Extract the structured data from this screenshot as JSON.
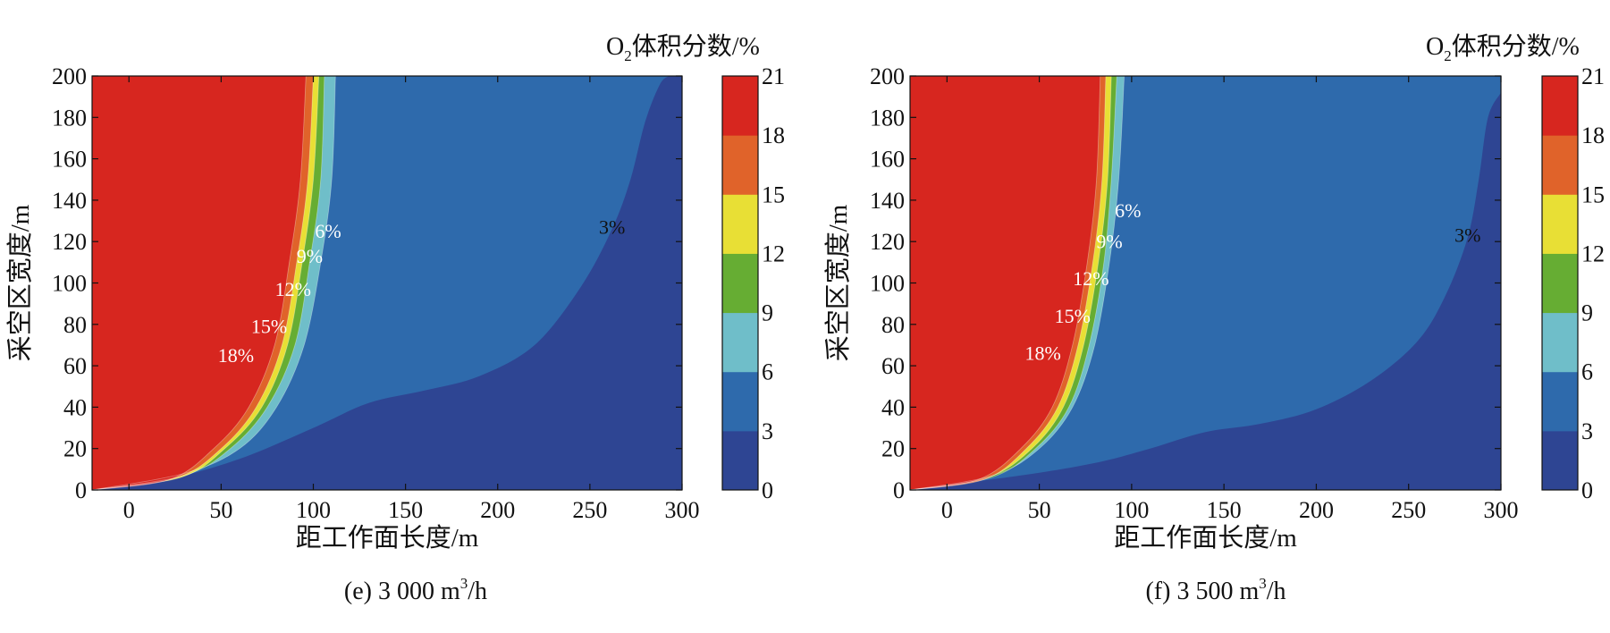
{
  "chart_data": [
    {
      "type": "contour",
      "caption": "(e) 3 000 m³/h",
      "caption_prefix": "(e) 3 000 m",
      "caption_sup": "3",
      "caption_suffix": "/h",
      "xlabel": "距工作面长度/m",
      "ylabel": "采空区宽度/m",
      "xlim": [
        -20,
        300
      ],
      "ylim": [
        0,
        200
      ],
      "xticks": [
        0,
        50,
        100,
        150,
        200,
        250,
        300
      ],
      "yticks": [
        0,
        20,
        40,
        60,
        80,
        100,
        120,
        140,
        160,
        180,
        200
      ],
      "colorbar_title_prefix": "O",
      "colorbar_title_sub": "2",
      "colorbar_title_suffix": "体积分数/%",
      "colorbar_ticks": [
        0,
        3,
        6,
        9,
        12,
        15,
        18,
        21
      ],
      "levels": [
        0,
        3,
        6,
        9,
        12,
        15,
        18,
        21
      ],
      "level_colors": [
        "#2e4593",
        "#2e6aac",
        "#6fbec9",
        "#66ad33",
        "#e8df35",
        "#e0632a",
        "#d7261f"
      ],
      "contour_labels": [
        {
          "text": "18%",
          "x": 58,
          "y": 64,
          "color": "#ffffff"
        },
        {
          "text": "15%",
          "x": 76,
          "y": 78,
          "color": "#ffffff"
        },
        {
          "text": "12%",
          "x": 89,
          "y": 96,
          "color": "#ffffff"
        },
        {
          "text": "9%",
          "x": 98,
          "y": 112,
          "color": "#ffffff"
        },
        {
          "text": "6%",
          "x": 108,
          "y": 124,
          "color": "#ffffff"
        },
        {
          "text": "3%",
          "x": 262,
          "y": 126,
          "color": "#111111"
        }
      ],
      "boundary_3pct": [
        [
          -20,
          0
        ],
        [
          20,
          5
        ],
        [
          60,
          15
        ],
        [
          100,
          30
        ],
        [
          130,
          42
        ],
        [
          160,
          48
        ],
        [
          190,
          55
        ],
        [
          220,
          70
        ],
        [
          245,
          98
        ],
        [
          262,
          126
        ],
        [
          272,
          150
        ],
        [
          280,
          178
        ],
        [
          288,
          196
        ],
        [
          293,
          200
        ]
      ],
      "boundary_6pct": [
        [
          -20,
          0
        ],
        [
          30,
          8
        ],
        [
          60,
          20
        ],
        [
          80,
          40
        ],
        [
          95,
          70
        ],
        [
          104,
          110
        ],
        [
          110,
          150
        ],
        [
          112,
          200
        ]
      ],
      "boundary_9pct": [
        [
          -20,
          0
        ],
        [
          30,
          7
        ],
        [
          55,
          20
        ],
        [
          75,
          40
        ],
        [
          90,
          70
        ],
        [
          98,
          110
        ],
        [
          104,
          150
        ],
        [
          106,
          200
        ]
      ],
      "boundary_12pct": [
        [
          -20,
          0
        ],
        [
          28,
          6
        ],
        [
          52,
          20
        ],
        [
          72,
          40
        ],
        [
          86,
          70
        ],
        [
          94,
          110
        ],
        [
          100,
          150
        ],
        [
          103,
          200
        ]
      ],
      "boundary_15pct": [
        [
          -20,
          0
        ],
        [
          26,
          6
        ],
        [
          50,
          20
        ],
        [
          69,
          40
        ],
        [
          83,
          70
        ],
        [
          91,
          110
        ],
        [
          97,
          150
        ],
        [
          100,
          200
        ]
      ],
      "boundary_18pct": [
        [
          -20,
          0
        ],
        [
          22,
          5
        ],
        [
          46,
          20
        ],
        [
          65,
          40
        ],
        [
          79,
          70
        ],
        [
          87,
          110
        ],
        [
          93,
          150
        ],
        [
          96,
          200
        ]
      ]
    },
    {
      "type": "contour",
      "caption": "(f) 3 500 m³/h",
      "caption_prefix": "(f) 3 500 m",
      "caption_sup": "3",
      "caption_suffix": "/h",
      "xlabel": "距工作面长度/m",
      "ylabel": "采空区宽度/m",
      "xlim": [
        -20,
        300
      ],
      "ylim": [
        0,
        200
      ],
      "xticks": [
        0,
        50,
        100,
        150,
        200,
        250,
        300
      ],
      "yticks": [
        0,
        20,
        40,
        60,
        80,
        100,
        120,
        140,
        160,
        180,
        200
      ],
      "colorbar_title_prefix": "O",
      "colorbar_title_sub": "2",
      "colorbar_title_suffix": "体积分数/%",
      "colorbar_ticks": [
        0,
        3,
        6,
        9,
        12,
        15,
        18,
        21
      ],
      "levels": [
        0,
        3,
        6,
        9,
        12,
        15,
        18,
        21
      ],
      "level_colors": [
        "#2e4593",
        "#2e6aac",
        "#6fbec9",
        "#66ad33",
        "#e8df35",
        "#e0632a",
        "#d7261f"
      ],
      "contour_labels": [
        {
          "text": "18%",
          "x": 52,
          "y": 65,
          "color": "#ffffff"
        },
        {
          "text": "15%",
          "x": 68,
          "y": 83,
          "color": "#ffffff"
        },
        {
          "text": "12%",
          "x": 78,
          "y": 101,
          "color": "#ffffff"
        },
        {
          "text": "9%",
          "x": 88,
          "y": 119,
          "color": "#ffffff"
        },
        {
          "text": "6%",
          "x": 98,
          "y": 134,
          "color": "#ffffff"
        },
        {
          "text": "3%",
          "x": 282,
          "y": 122,
          "color": "#111111"
        }
      ],
      "boundary_3pct": [
        [
          -20,
          0
        ],
        [
          40,
          7
        ],
        [
          80,
          13
        ],
        [
          110,
          20
        ],
        [
          140,
          28
        ],
        [
          170,
          32
        ],
        [
          200,
          39
        ],
        [
          230,
          53
        ],
        [
          255,
          72
        ],
        [
          270,
          94
        ],
        [
          282,
          122
        ],
        [
          288,
          150
        ],
        [
          293,
          180
        ],
        [
          300,
          192
        ]
      ],
      "boundary_6pct": [
        [
          -20,
          0
        ],
        [
          25,
          7
        ],
        [
          50,
          20
        ],
        [
          68,
          40
        ],
        [
          80,
          70
        ],
        [
          88,
          110
        ],
        [
          93,
          150
        ],
        [
          96,
          200
        ]
      ],
      "boundary_9pct": [
        [
          -20,
          0
        ],
        [
          24,
          6
        ],
        [
          48,
          20
        ],
        [
          66,
          40
        ],
        [
          77,
          70
        ],
        [
          85,
          110
        ],
        [
          89,
          150
        ],
        [
          92,
          200
        ]
      ],
      "boundary_12pct": [
        [
          -20,
          0
        ],
        [
          22,
          6
        ],
        [
          46,
          20
        ],
        [
          63,
          40
        ],
        [
          74,
          70
        ],
        [
          82,
          110
        ],
        [
          87,
          150
        ],
        [
          89,
          200
        ]
      ],
      "boundary_15pct": [
        [
          -20,
          0
        ],
        [
          20,
          5
        ],
        [
          43,
          20
        ],
        [
          60,
          40
        ],
        [
          71,
          70
        ],
        [
          79,
          110
        ],
        [
          84,
          150
        ],
        [
          86,
          200
        ]
      ],
      "boundary_18pct": [
        [
          -20,
          0
        ],
        [
          17,
          5
        ],
        [
          40,
          20
        ],
        [
          57,
          40
        ],
        [
          68,
          70
        ],
        [
          76,
          110
        ],
        [
          81,
          150
        ],
        [
          83,
          200
        ]
      ]
    }
  ]
}
